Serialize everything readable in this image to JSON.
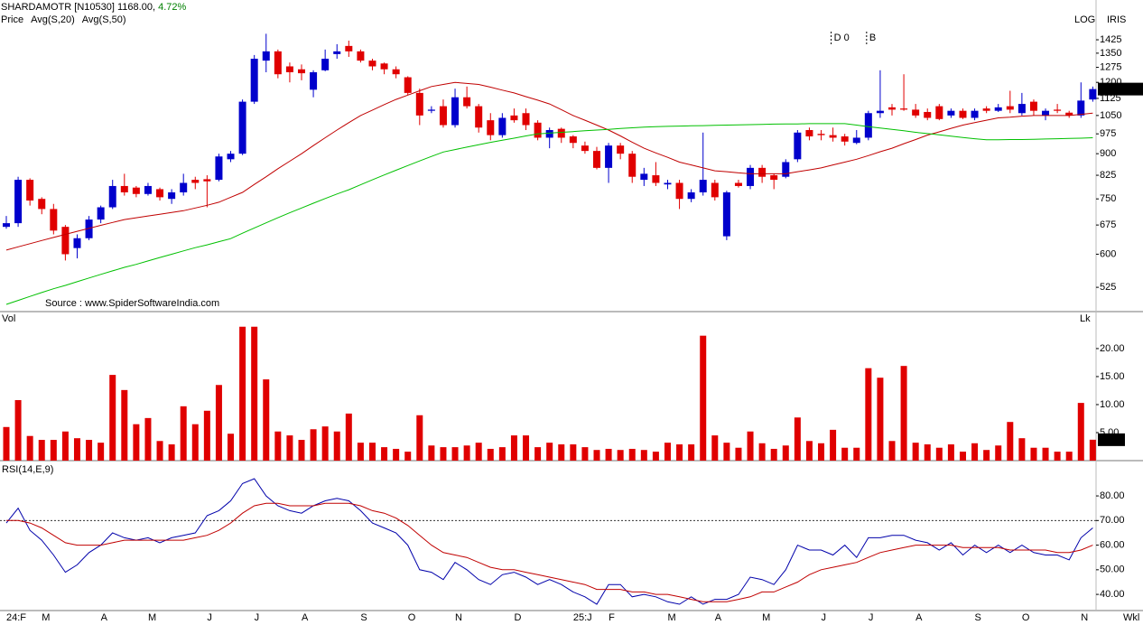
{
  "chart_data": [
    {
      "type": "candlestick",
      "title": "SHARDAMOTR [N10530]",
      "last_price_label": "1168.00,",
      "change": "4.72%",
      "log": true,
      "log_label": "LOG",
      "tag": "IRIS",
      "source": "Source : www.SpiderSoftwareIndia.com",
      "ylim": [
        476,
        1673
      ],
      "yticks": [
        525,
        600,
        675,
        750,
        825,
        900,
        975,
        1050,
        1125,
        1200,
        1275,
        1350,
        1425
      ],
      "annotations": [
        {
          "text": "D 0",
          "index": 70
        },
        {
          "text": "B",
          "index": 73
        }
      ],
      "series": [
        {
          "name": "Price",
          "color": "#0000cc",
          "down_color": "#e00000",
          "last_label": "1168.00",
          "open": [
            670,
            680,
            810,
            750,
            720,
            670,
            615,
            640,
            690,
            725,
            790,
            785,
            765,
            780,
            750,
            770,
            810,
            812,
            810,
            880,
            900,
            1110,
            1310,
            1360,
            1280,
            1265,
            1165,
            1260,
            1345,
            1390,
            1360,
            1310,
            1295,
            1265,
            1225,
            1150,
            1070,
            1090,
            1010,
            1130,
            1090,
            1030,
            970,
            1050,
            1060,
            1020,
            960,
            995,
            965,
            930,
            910,
            850,
            930,
            900,
            810,
            825,
            795,
            800,
            750,
            770,
            800,
            645,
            800,
            790,
            850,
            825,
            820,
            880,
            990,
            975,
            970,
            965,
            940,
            960,
            1060,
            1085,
            1080,
            1075,
            1065,
            1090,
            1050,
            1070,
            1040,
            1080,
            1070,
            1090,
            1060,
            1110,
            1050,
            1075,
            1062,
            1050,
            1120
          ],
          "high": [
            700,
            820,
            815,
            755,
            735,
            675,
            650,
            700,
            730,
            810,
            830,
            790,
            800,
            785,
            780,
            830,
            820,
            825,
            900,
            910,
            1120,
            1340,
            1460,
            1370,
            1300,
            1290,
            1260,
            1370,
            1400,
            1420,
            1370,
            1320,
            1300,
            1280,
            1230,
            1170,
            1090,
            1120,
            1170,
            1180,
            1100,
            1060,
            1060,
            1080,
            1080,
            1030,
            1000,
            1000,
            970,
            945,
            925,
            940,
            940,
            910,
            850,
            870,
            810,
            810,
            780,
            980,
            810,
            775,
            810,
            860,
            860,
            830,
            880,
            990,
            1000,
            990,
            1000,
            975,
            990,
            1070,
            1260,
            1100,
            1240,
            1100,
            1080,
            1100,
            1080,
            1080,
            1080,
            1090,
            1100,
            1160,
            1150,
            1120,
            1080,
            1100,
            1070,
            1200,
            1180
          ],
          "low": [
            665,
            670,
            730,
            705,
            650,
            585,
            590,
            635,
            680,
            720,
            760,
            755,
            760,
            745,
            735,
            760,
            780,
            725,
            805,
            870,
            895,
            1100,
            1250,
            1220,
            1200,
            1210,
            1130,
            1255,
            1320,
            1330,
            1300,
            1260,
            1240,
            1220,
            1140,
            1010,
            1060,
            1000,
            1000,
            1080,
            980,
            950,
            960,
            1020,
            990,
            950,
            920,
            940,
            920,
            900,
            845,
            800,
            880,
            800,
            790,
            790,
            780,
            720,
            740,
            760,
            745,
            635,
            785,
            780,
            800,
            780,
            815,
            870,
            950,
            950,
            945,
            930,
            935,
            950,
            1040,
            1050,
            1070,
            1040,
            1030,
            1030,
            1040,
            1035,
            1030,
            1060,
            1065,
            1060,
            1050,
            1050,
            1030,
            1060,
            1040,
            1040,
            1110
          ],
          "close": [
            680,
            810,
            745,
            720,
            660,
            600,
            640,
            690,
            725,
            790,
            770,
            765,
            790,
            755,
            770,
            800,
            800,
            805,
            890,
            900,
            1110,
            1320,
            1360,
            1240,
            1250,
            1245,
            1250,
            1320,
            1360,
            1360,
            1310,
            1280,
            1265,
            1240,
            1150,
            1050,
            1075,
            1010,
            1130,
            1090,
            1000,
            970,
            1040,
            1030,
            1010,
            960,
            990,
            960,
            940,
            910,
            850,
            930,
            900,
            820,
            830,
            800,
            800,
            750,
            770,
            810,
            755,
            770,
            790,
            850,
            820,
            810,
            870,
            980,
            965,
            970,
            960,
            945,
            960,
            1060,
            1070,
            1075,
            1075,
            1050,
            1040,
            1035,
            1070,
            1040,
            1070,
            1070,
            1085,
            1075,
            1100,
            1070,
            1070,
            1070,
            1050,
            1115,
            1168
          ]
        },
        {
          "name": "Avg(S,20)",
          "color": "#c00000",
          "values": [
            610,
            618,
            626,
            634,
            642,
            650,
            658,
            666,
            674,
            682,
            690,
            695,
            700,
            705,
            710,
            715,
            723,
            731,
            740,
            755,
            770,
            795,
            820,
            847,
            873,
            900,
            930,
            960,
            990,
            1020,
            1050,
            1073,
            1097,
            1120,
            1140,
            1160,
            1180,
            1190,
            1200,
            1195,
            1190,
            1177,
            1163,
            1150,
            1133,
            1117,
            1100,
            1075,
            1050,
            1030,
            1010,
            990,
            967,
            943,
            920,
            903,
            887,
            870,
            860,
            850,
            840,
            837,
            833,
            830,
            830,
            830,
            830,
            837,
            843,
            850,
            860,
            870,
            880,
            893,
            907,
            920,
            937,
            953,
            970,
            983,
            997,
            1010,
            1020,
            1030,
            1040,
            1043,
            1047,
            1050,
            1050,
            1050,
            1050,
            1055,
            1060
          ]
        },
        {
          "name": "Avg(S,50)",
          "color": "#00c000",
          "values": [
            490,
            498,
            506,
            514,
            522,
            529,
            537,
            545,
            553,
            561,
            569,
            576,
            584,
            592,
            600,
            608,
            616,
            623,
            631,
            639,
            653,
            667,
            681,
            695,
            709,
            723,
            737,
            751,
            765,
            778,
            794,
            810,
            826,
            842,
            858,
            874,
            890,
            906,
            915,
            924,
            933,
            942,
            950,
            958,
            967,
            975,
            978,
            981,
            984,
            987,
            990,
            993,
            996,
            999,
            1002,
            1004,
            1005,
            1006,
            1007,
            1008,
            1009,
            1010,
            1011,
            1012,
            1013,
            1014,
            1015,
            1015,
            1016,
            1016,
            1016,
            1016,
            1010,
            1004,
            998,
            993,
            987,
            981,
            976,
            971,
            966,
            961,
            956,
            952,
            952,
            953,
            953,
            954,
            955,
            956,
            957,
            958,
            960
          ]
        }
      ]
    },
    {
      "type": "bar",
      "title": "Vol",
      "unit": "Lk",
      "color": "#e00000",
      "last_label": "3.73",
      "ylim": [
        0,
        26.6
      ],
      "yticks": [
        {
          "value": 5,
          "label": "5.00"
        },
        {
          "value": 10,
          "label": "10.00"
        },
        {
          "value": 15,
          "label": "15.00"
        },
        {
          "value": 20,
          "label": "20.00"
        }
      ],
      "values": [
        6.0,
        10.8,
        4.4,
        3.7,
        3.7,
        5.2,
        4.0,
        3.7,
        3.2,
        15.3,
        12.6,
        6.5,
        7.6,
        3.5,
        2.9,
        9.7,
        6.5,
        8.9,
        13.5,
        4.8,
        23.9,
        23.9,
        14.5,
        5.2,
        4.5,
        3.7,
        5.6,
        6.1,
        5.2,
        8.4,
        3.2,
        3.2,
        2.4,
        2.1,
        1.6,
        8.1,
        2.7,
        2.4,
        2.4,
        2.7,
        3.2,
        2.1,
        2.4,
        4.5,
        4.5,
        2.4,
        3.2,
        2.9,
        2.9,
        2.4,
        1.9,
        2.1,
        1.9,
        2.1,
        1.9,
        1.6,
        3.2,
        2.9,
        2.9,
        22.3,
        4.5,
        3.2,
        2.3,
        5.2,
        3.1,
        2.1,
        2.7,
        7.7,
        3.5,
        3.1,
        5.5,
        2.3,
        2.3,
        16.5,
        14.8,
        3.5,
        16.9,
        3.2,
        2.9,
        2.3,
        2.9,
        1.6,
        3.1,
        1.9,
        2.7,
        6.9,
        4.0,
        2.3,
        2.3,
        1.6,
        1.6,
        10.3,
        3.73
      ]
    },
    {
      "type": "line",
      "title": "RSI(14,E,9)",
      "x_label": "Wkl",
      "reference": 70,
      "ylim": [
        33.8,
        93.6
      ],
      "yticks": [
        {
          "value": 40,
          "label": "40.00"
        },
        {
          "value": 50,
          "label": "50.00"
        },
        {
          "value": 60,
          "label": "60.00"
        },
        {
          "value": 70,
          "label": "70.00"
        },
        {
          "value": 80,
          "label": "80.00"
        }
      ],
      "categories": [
        "24:F",
        null,
        null,
        "M",
        null,
        null,
        null,
        null,
        "A",
        null,
        null,
        null,
        "M",
        null,
        null,
        null,
        null,
        "J",
        null,
        null,
        null,
        "J",
        null,
        null,
        null,
        "A",
        null,
        null,
        null,
        null,
        "S",
        null,
        null,
        null,
        "O",
        null,
        null,
        null,
        "N",
        null,
        null,
        null,
        null,
        "D",
        null,
        null,
        null,
        null,
        "25:J",
        null,
        null,
        "F",
        null,
        null,
        null,
        null,
        "M",
        null,
        null,
        null,
        "A",
        null,
        null,
        null,
        "M",
        null,
        null,
        null,
        null,
        "J",
        null,
        null,
        null,
        "J",
        null,
        null,
        null,
        "A",
        null,
        null,
        null,
        null,
        "S",
        null,
        null,
        null,
        "O",
        null,
        null,
        null,
        null,
        "N",
        null
      ],
      "series": [
        {
          "color": "#0000aa",
          "values": [
            69,
            75,
            66,
            62,
            56,
            49,
            52,
            57,
            60,
            65,
            63,
            62,
            63,
            61,
            63,
            64,
            65,
            72,
            74,
            78,
            85,
            87,
            80,
            76,
            74,
            73,
            76,
            78,
            79,
            78,
            74,
            69,
            67,
            65,
            60,
            50,
            49,
            46,
            53,
            50,
            46,
            44,
            48,
            49,
            47,
            44,
            46,
            44,
            41,
            39,
            36,
            44,
            44,
            39,
            40,
            39,
            37,
            36,
            39,
            36,
            38,
            38,
            40,
            47,
            46,
            44,
            50,
            60,
            58,
            58,
            56,
            60,
            55,
            63,
            63,
            64,
            64,
            62,
            61,
            58,
            61,
            56,
            60,
            57,
            60,
            57,
            60,
            57,
            56,
            56,
            54,
            63,
            67
          ]
        },
        {
          "color": "#c00000",
          "values": [
            70,
            70,
            69,
            67,
            64,
            61,
            60,
            60,
            60,
            61,
            62,
            62,
            62,
            62,
            62,
            62,
            63,
            64,
            66,
            69,
            73,
            76,
            77,
            77,
            76,
            76,
            76,
            77,
            77,
            77,
            76,
            74,
            73,
            71,
            68,
            64,
            60,
            57,
            56,
            55,
            53,
            51,
            50,
            50,
            49,
            48,
            47,
            46,
            45,
            44,
            42,
            42,
            42,
            41,
            41,
            40,
            40,
            39,
            38,
            37,
            37,
            37,
            38,
            39,
            41,
            41,
            43,
            45,
            48,
            50,
            51,
            52,
            53,
            55,
            57,
            58,
            59,
            60,
            60,
            60,
            60,
            59,
            59,
            59,
            59,
            58,
            58,
            58,
            58,
            57,
            57,
            58,
            60
          ]
        }
      ]
    }
  ]
}
